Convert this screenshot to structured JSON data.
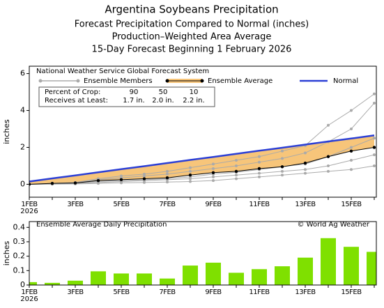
{
  "chart_data": [
    {
      "type": "line",
      "title": "Argentina Soybeans Precipitation",
      "subtitle": [
        "Forecast Precipitation Compared to Normal (inches)",
        "Production–Weighted Area Average",
        "15-Day Forecast Beginning 1 February 2026"
      ],
      "legend_title": "National Weather Service Global Forecast System",
      "ylabel": "inches",
      "categories": [
        "1FEB",
        null,
        "3FEB",
        null,
        "5FEB",
        null,
        "7FEB",
        null,
        "9FEB",
        null,
        "11FEB",
        null,
        "13FEB",
        null,
        "15FEB",
        null
      ],
      "year": "2026",
      "ylim": [
        -0.7,
        6.4
      ],
      "yticks": [
        0,
        2,
        4,
        6
      ],
      "members_name": "Ensemble Members",
      "members_color": "#aaaaaa",
      "members": [
        [
          0,
          0.05,
          0.1,
          0.3,
          0.45,
          0.55,
          0.7,
          0.9,
          1.1,
          1.3,
          1.5,
          1.8,
          2.1,
          3.2,
          4.0,
          4.9
        ],
        [
          0,
          0.05,
          0.08,
          0.25,
          0.35,
          0.45,
          0.55,
          0.7,
          0.85,
          1.0,
          1.2,
          1.4,
          1.7,
          2.3,
          3.0,
          4.4
        ],
        [
          0,
          0.04,
          0.06,
          0.15,
          0.2,
          0.25,
          0.3,
          0.4,
          0.55,
          0.65,
          0.8,
          0.95,
          1.1,
          1.5,
          2.0,
          2.5
        ],
        [
          0,
          0.02,
          0.04,
          0.1,
          0.15,
          0.2,
          0.25,
          0.3,
          0.4,
          0.5,
          0.6,
          0.7,
          0.8,
          1.0,
          1.3,
          1.6
        ],
        [
          0,
          0.01,
          0.02,
          0.05,
          0.08,
          0.1,
          0.12,
          0.15,
          0.2,
          0.3,
          0.4,
          0.5,
          0.6,
          0.7,
          0.8,
          1.0
        ]
      ],
      "series": [
        {
          "name": "Normal",
          "color": "#2b3fd6",
          "values": [
            0.15,
            0.32,
            0.48,
            0.65,
            0.82,
            0.98,
            1.15,
            1.32,
            1.48,
            1.65,
            1.82,
            1.98,
            2.15,
            2.32,
            2.48,
            2.65
          ]
        },
        {
          "name": "Ensemble Average",
          "color": "#000000",
          "band_color": "#f7c57a",
          "values": [
            0,
            0.05,
            0.07,
            0.2,
            0.25,
            0.3,
            0.35,
            0.5,
            0.63,
            0.7,
            0.85,
            0.95,
            1.15,
            1.5,
            1.8,
            2.0
          ]
        }
      ],
      "crop_table": {
        "rows": [
          [
            "Percent of Crop:",
            "90",
            "50",
            "10"
          ],
          [
            "Receives at Least:",
            "1.7 in.",
            "2.0 in.",
            "2.2 in."
          ]
        ]
      }
    },
    {
      "type": "bar",
      "title": "Ensemble Average Daily Precipitation",
      "credit": "© World Ag Weather",
      "ylabel": "inches",
      "categories": [
        "1FEB",
        null,
        "3FEB",
        null,
        "5FEB",
        null,
        "7FEB",
        null,
        "9FEB",
        null,
        "11FEB",
        null,
        "13FEB",
        null,
        "15FEB",
        null
      ],
      "year": "2026",
      "color": "#7fe000",
      "values": [
        0.02,
        0.015,
        0.03,
        0.095,
        0.08,
        0.08,
        0.045,
        0.135,
        0.155,
        0.085,
        0.11,
        0.13,
        0.19,
        0.325,
        0.265,
        0.23
      ],
      "ylim": [
        0,
        0.44
      ],
      "yticks": [
        0,
        0.1,
        0.2,
        0.3,
        0.4
      ]
    }
  ]
}
